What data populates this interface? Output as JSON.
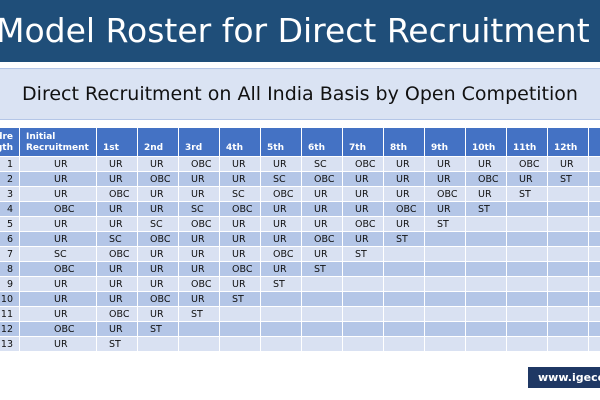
{
  "header": {
    "title": "Model Roster for Direct Recruitment"
  },
  "subtitle": "Direct Recruitment on All India Basis by Open Competition",
  "table": {
    "columns": [
      "Cadre Strength",
      "Initial Recruitment",
      "1st",
      "2nd",
      "3rd",
      "4th",
      "5th",
      "6th",
      "7th",
      "8th",
      "9th",
      "10th",
      "11th",
      "12th"
    ],
    "rows": [
      [
        1,
        "UR",
        "UR",
        "UR",
        "OBC",
        "UR",
        "UR",
        "SC",
        "OBC",
        "UR",
        "UR",
        "UR",
        "OBC",
        "UR"
      ],
      [
        2,
        "UR",
        "UR",
        "OBC",
        "UR",
        "UR",
        "SC",
        "OBC",
        "UR",
        "UR",
        "UR",
        "OBC",
        "UR",
        "ST"
      ],
      [
        3,
        "UR",
        "OBC",
        "UR",
        "UR",
        "SC",
        "OBC",
        "UR",
        "UR",
        "UR",
        "OBC",
        "UR",
        "ST"
      ],
      [
        4,
        "OBC",
        "UR",
        "UR",
        "SC",
        "OBC",
        "UR",
        "UR",
        "UR",
        "OBC",
        "UR",
        "ST"
      ],
      [
        5,
        "UR",
        "UR",
        "SC",
        "OBC",
        "UR",
        "UR",
        "UR",
        "OBC",
        "UR",
        "ST"
      ],
      [
        6,
        "UR",
        "SC",
        "OBC",
        "UR",
        "UR",
        "UR",
        "OBC",
        "UR",
        "ST"
      ],
      [
        7,
        "SC",
        "OBC",
        "UR",
        "UR",
        "UR",
        "OBC",
        "UR",
        "ST"
      ],
      [
        8,
        "OBC",
        "UR",
        "UR",
        "UR",
        "OBC",
        "UR",
        "ST"
      ],
      [
        9,
        "UR",
        "UR",
        "UR",
        "OBC",
        "UR",
        "ST"
      ],
      [
        10,
        "UR",
        "UR",
        "OBC",
        "UR",
        "ST"
      ],
      [
        11,
        "UR",
        "OBC",
        "UR",
        "ST"
      ],
      [
        12,
        "OBC",
        "UR",
        "ST"
      ],
      [
        13,
        "UR",
        "ST"
      ]
    ]
  },
  "footer": "www.igecor"
}
